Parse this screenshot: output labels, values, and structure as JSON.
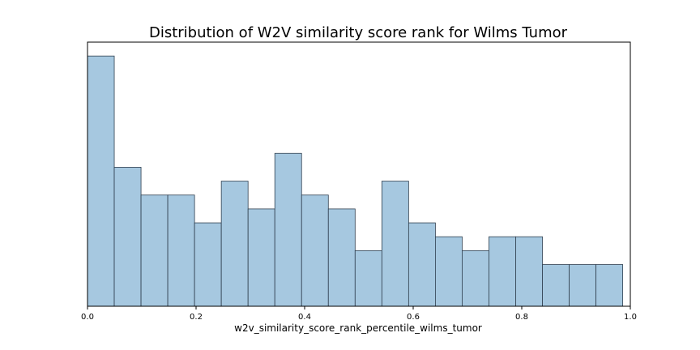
{
  "chart_data": {
    "type": "bar",
    "title": "Distribution of W2V similarity score rank for Wilms Tumor",
    "xlabel": "w2v_similarity_score_rank_percentile_wilms_tumor",
    "ylabel": "",
    "xlim": [
      0.0,
      1.0
    ],
    "ylim": [
      0,
      19
    ],
    "y_ticks_shown": false,
    "grid": false,
    "bar_color": "#a6c8e0",
    "bar_edge_color": "#2f3f4f",
    "bin_width": 0.0493,
    "bins": [
      {
        "start": 0.0,
        "count": 18
      },
      {
        "start": 0.0493,
        "count": 10
      },
      {
        "start": 0.0986,
        "count": 8
      },
      {
        "start": 0.1479,
        "count": 8
      },
      {
        "start": 0.1972,
        "count": 6
      },
      {
        "start": 0.2465,
        "count": 9
      },
      {
        "start": 0.2958,
        "count": 7
      },
      {
        "start": 0.3451,
        "count": 11
      },
      {
        "start": 0.3944,
        "count": 8
      },
      {
        "start": 0.4437,
        "count": 7
      },
      {
        "start": 0.493,
        "count": 4
      },
      {
        "start": 0.5423,
        "count": 9
      },
      {
        "start": 0.5916,
        "count": 6
      },
      {
        "start": 0.6409,
        "count": 5
      },
      {
        "start": 0.6902,
        "count": 4
      },
      {
        "start": 0.7395,
        "count": 5
      },
      {
        "start": 0.7888,
        "count": 5
      },
      {
        "start": 0.8381,
        "count": 3
      },
      {
        "start": 0.8874,
        "count": 3
      },
      {
        "start": 0.9367,
        "count": 3
      }
    ],
    "x_ticks": [
      "0.0",
      "0.2",
      "0.4",
      "0.6",
      "0.8",
      "1.0"
    ]
  }
}
